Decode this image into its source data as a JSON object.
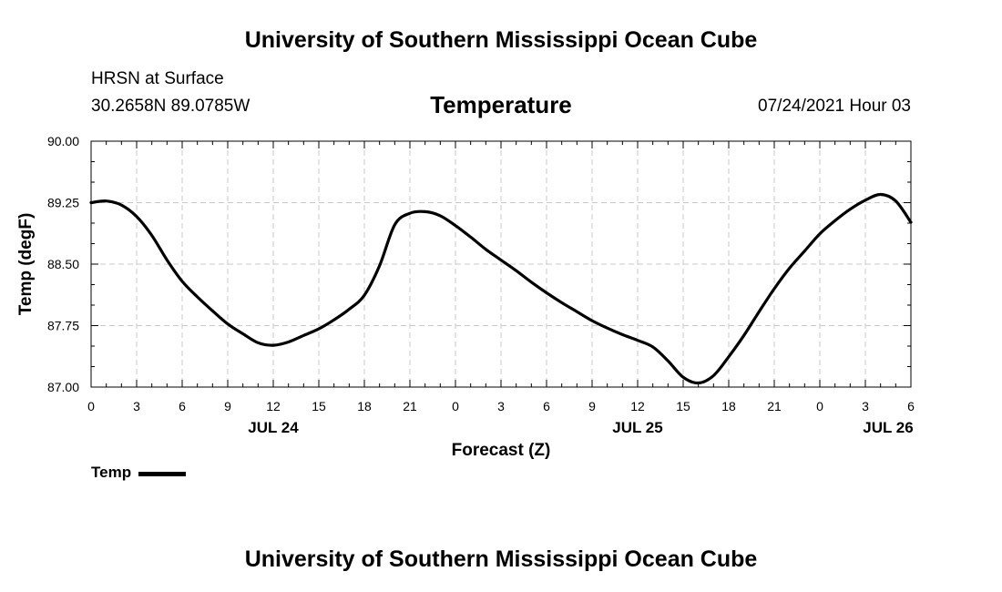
{
  "header": {
    "org_title": "University of Southern Mississippi Ocean Cube",
    "station_name": "HRSN at Surface",
    "station_coords": "30.2658N  89.0785W",
    "timestamp": "07/24/2021 Hour 03"
  },
  "footer": {
    "org_title": "University of Southern Mississippi Ocean Cube"
  },
  "legend": {
    "entries": [
      {
        "label": "Temp",
        "color": "#000000"
      }
    ]
  },
  "chart_data": {
    "type": "line",
    "title": "Temperature",
    "xlabel": "Forecast (Z)",
    "ylabel": "Temp (degF)",
    "xlim": [
      0,
      54
    ],
    "ylim": [
      87.0,
      90.0
    ],
    "x_unit": "hours from JUL 24 00Z",
    "y_ticks": [
      "87.00",
      "87.75",
      "88.50",
      "89.25",
      "90.00"
    ],
    "y_tick_values": [
      87.0,
      87.75,
      88.5,
      89.25,
      90.0
    ],
    "x_tick_values": [
      0,
      3,
      6,
      9,
      12,
      15,
      18,
      21,
      24,
      27,
      30,
      33,
      36,
      39,
      42,
      45,
      48,
      51,
      54
    ],
    "x_tick_labels": [
      "0",
      "3",
      "6",
      "9",
      "12",
      "15",
      "18",
      "21",
      "0",
      "3",
      "6",
      "9",
      "12",
      "15",
      "18",
      "21",
      "0",
      "3",
      "6"
    ],
    "date_labels": [
      {
        "label": "JUL 24",
        "at": 12
      },
      {
        "label": "JUL 25",
        "at": 36
      },
      {
        "label": "JUL 26",
        "at": 52.5
      }
    ],
    "grid": true,
    "series": [
      {
        "name": "Temp",
        "color": "#000000",
        "x": [
          0,
          1,
          2,
          3,
          4,
          5,
          6,
          7,
          8,
          9,
          10,
          11,
          12,
          13,
          14,
          15,
          16,
          17,
          18,
          19,
          20,
          21,
          22,
          23,
          24,
          25,
          26,
          27,
          28,
          29,
          30,
          31,
          32,
          33,
          34,
          35,
          36,
          37,
          38,
          39,
          40,
          41,
          42,
          43,
          44,
          45,
          46,
          47,
          48,
          49,
          50,
          51,
          52,
          53,
          54
        ],
        "y": [
          89.25,
          89.27,
          89.22,
          89.08,
          88.85,
          88.55,
          88.29,
          88.1,
          87.93,
          87.77,
          87.65,
          87.54,
          87.51,
          87.55,
          87.63,
          87.71,
          87.82,
          87.95,
          88.12,
          88.48,
          88.98,
          89.12,
          89.14,
          89.09,
          88.97,
          88.83,
          88.68,
          88.55,
          88.42,
          88.28,
          88.15,
          88.03,
          87.92,
          87.81,
          87.72,
          87.64,
          87.57,
          87.49,
          87.32,
          87.12,
          87.05,
          87.14,
          87.37,
          87.63,
          87.92,
          88.2,
          88.45,
          88.66,
          88.87,
          89.03,
          89.17,
          89.28,
          89.35,
          89.27,
          89.01
        ]
      }
    ]
  }
}
